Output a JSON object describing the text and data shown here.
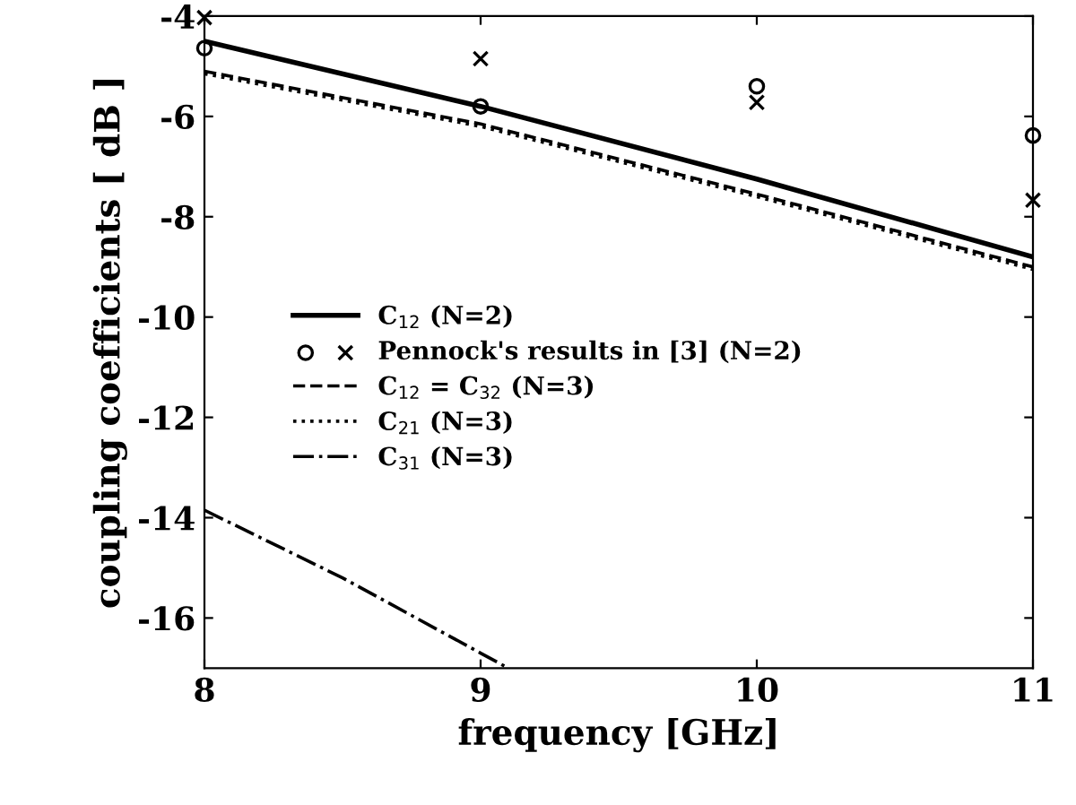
{
  "chart_data": {
    "type": "line",
    "xlabel": "frequency [GHz]",
    "ylabel": "coupling coefficients [ dB ]",
    "xlim": [
      8,
      11
    ],
    "ylim": [
      -17,
      -4
    ],
    "xticks": [
      8,
      9,
      10,
      11
    ],
    "yticks": [
      -16,
      -14,
      -12,
      -10,
      -8,
      -6,
      -4
    ],
    "grid": false,
    "legend": "left",
    "series": [
      {
        "name": "C$_{12}$ (N=2)",
        "color": "#000000",
        "x": [
          8,
          9,
          10,
          11
        ],
        "values": [
          -4.5,
          -5.8,
          -7.25,
          -8.8
        ],
        "line_style": "solid",
        "marker": "none"
      },
      {
        "name": "Pennock's results in [3] (N=2)",
        "type": "scatter",
        "color": "#000000",
        "x": [
          8,
          9,
          10,
          11
        ],
        "values": [
          -4.64,
          -5.8,
          -5.4,
          -6.38
        ],
        "marker": "circle"
      },
      {
        "type": "scatter",
        "color": "#000000",
        "x": [
          8,
          9,
          10,
          11
        ],
        "values": [
          -4.03,
          -4.85,
          -5.72,
          -7.67
        ],
        "marker": "cross"
      },
      {
        "name": "C$_{12}$ = C$_{32}$ (N=3)",
        "color": "#000000",
        "x": [
          8,
          9,
          10,
          11
        ],
        "values": [
          -5.1,
          -6.15,
          -7.55,
          -9.0
        ],
        "line_style": "dashed",
        "marker": "none"
      },
      {
        "name": "C$_{21}$ (N=3)",
        "color": "#000000",
        "x": [
          8,
          9,
          10,
          11
        ],
        "values": [
          -5.15,
          -6.2,
          -7.6,
          -9.05
        ],
        "line_style": "dotted",
        "marker": "none"
      },
      {
        "name": "C$_{31}$ (N=3)",
        "color": "#000000",
        "x": [
          8,
          8.5,
          9,
          9.1
        ],
        "values": [
          -13.85,
          -15.2,
          -16.7,
          -17
        ],
        "line_style": "dashdot",
        "marker": "none"
      }
    ]
  }
}
